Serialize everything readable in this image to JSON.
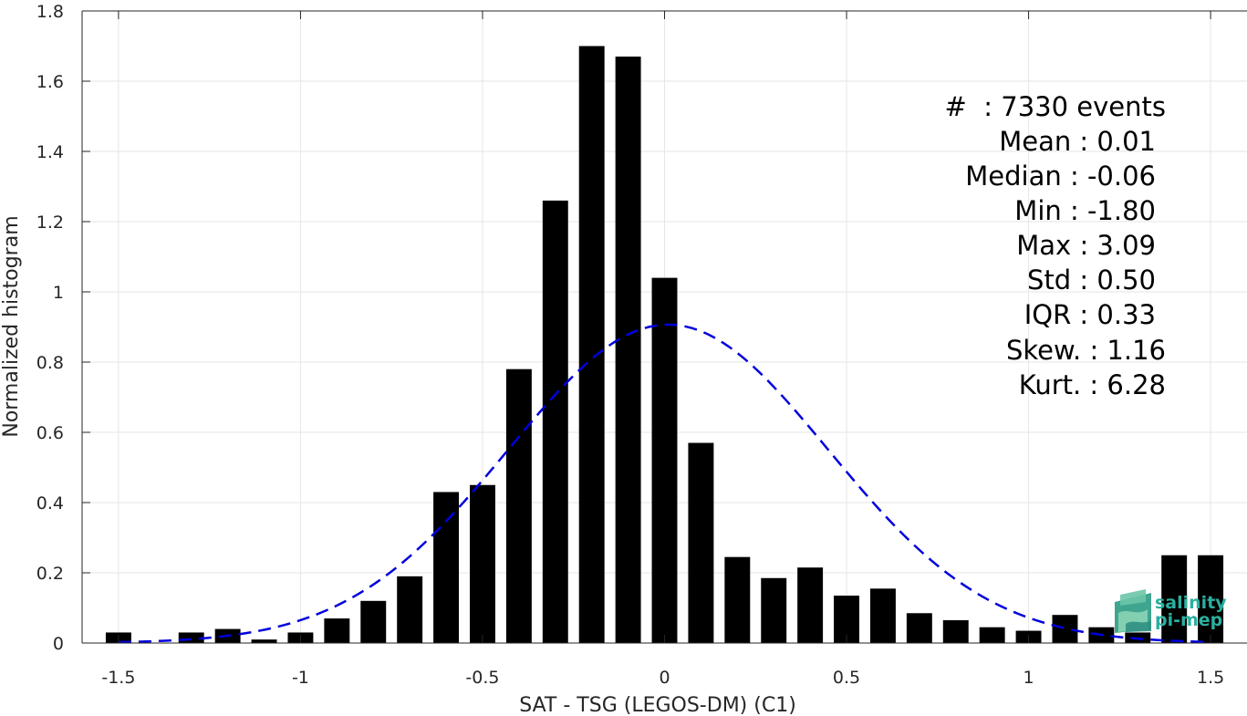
{
  "chart_data": {
    "type": "bar",
    "xlabel": "SAT - TSG (LEGOS-DM) (C1)",
    "ylabel": "Normalized histogram",
    "xlim": [
      -1.6,
      1.6
    ],
    "ylim": [
      0,
      1.8
    ],
    "xticks": [
      -1.5,
      -1,
      -0.5,
      0,
      0.5,
      1,
      1.5
    ],
    "xtick_labels": [
      "-1.5",
      "-1",
      "-0.5",
      "0",
      "0.5",
      "1",
      "1.5"
    ],
    "yticks": [
      0,
      0.2,
      0.4,
      0.6,
      0.8,
      1,
      1.2,
      1.4,
      1.6,
      1.8
    ],
    "ytick_labels": [
      "0",
      "0.2",
      "0.4",
      "0.6",
      "0.8",
      "1",
      "1.2",
      "1.4",
      "1.6",
      "1.8"
    ],
    "grid": true,
    "bar_color": "#000000",
    "bar_width": 0.07,
    "bars": {
      "x": [
        -1.5,
        -1.4,
        -1.3,
        -1.2,
        -1.1,
        -1.0,
        -0.9,
        -0.8,
        -0.7,
        -0.6,
        -0.5,
        -0.4,
        -0.3,
        -0.2,
        -0.1,
        0.0,
        0.1,
        0.2,
        0.3,
        0.4,
        0.5,
        0.6,
        0.7,
        0.8,
        0.9,
        1.0,
        1.1,
        1.2,
        1.3,
        1.4,
        1.5
      ],
      "values": [
        0.03,
        0.0,
        0.03,
        0.04,
        0.01,
        0.03,
        0.07,
        0.12,
        0.19,
        0.43,
        0.45,
        0.78,
        1.26,
        1.7,
        1.67,
        1.04,
        0.57,
        0.245,
        0.185,
        0.215,
        0.135,
        0.155,
        0.085,
        0.065,
        0.045,
        0.035,
        0.08,
        0.045,
        0.03,
        0.25,
        0.25
      ]
    },
    "fit_curve": {
      "style": "dashed",
      "color": "#0000dd",
      "distribution": "normal",
      "mean": 0.01,
      "std": 0.44,
      "x_range": [
        -1.5,
        1.5
      ]
    },
    "annotations": [
      "#  : 7330 events",
      "Mean : 0.01",
      "Median : -0.06",
      "Min : -1.80",
      "Max : 3.09",
      "Std : 0.50",
      "IQR : 0.33",
      "Skew. : 1.16",
      "Kurt. : 6.28"
    ]
  },
  "logo": {
    "line1": "salinity",
    "line2": "pi-mep",
    "color": "#2ab0a0"
  }
}
